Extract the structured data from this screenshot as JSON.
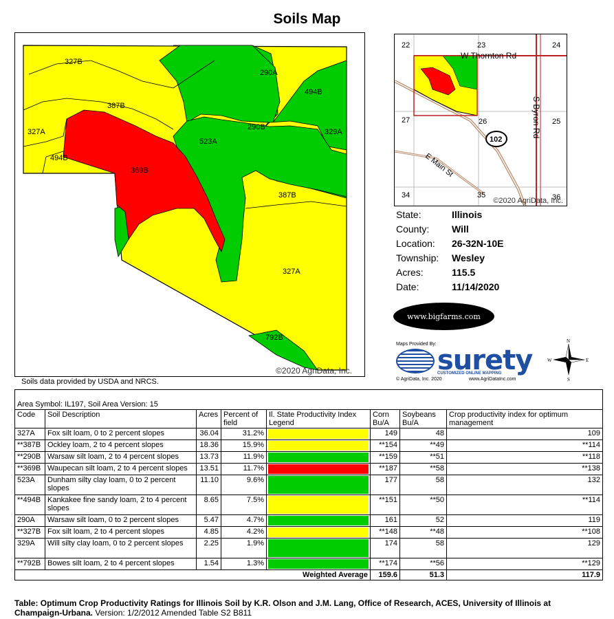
{
  "title": "Soils Map",
  "map": {
    "copyright": "©2020 AgriData, Inc.",
    "colors": {
      "yellow": "#ffff00",
      "green": "#00cc00",
      "red": "#ff0000"
    },
    "labels": [
      "327B",
      "290A",
      "494B",
      "387B",
      "327A",
      "290B",
      "329A",
      "523A",
      "494B",
      "369B",
      "387B",
      "327A",
      "792B"
    ]
  },
  "source_note": "Soils data provided by USDA and NRCS.",
  "locator": {
    "sections": [
      "22",
      "23",
      "24",
      "27",
      "26",
      "25",
      "34",
      "35",
      "36"
    ],
    "roads": [
      "W Thornton Rd",
      "S Byron Rd",
      "E Main St"
    ],
    "route_shield": "102",
    "copyright": "©2020 AgriData, Inc."
  },
  "info": [
    {
      "label": "State:",
      "value": "Illinois"
    },
    {
      "label": "County:",
      "value": "Will"
    },
    {
      "label": "Location:",
      "value": "26-32N-10E"
    },
    {
      "label": "Township:",
      "value": "Wesley"
    },
    {
      "label": "Acres:",
      "value": "115.5"
    },
    {
      "label": "Date:",
      "value": "11/14/2020"
    }
  ],
  "bigfarms": "www.bigfarms.com",
  "surety": {
    "provided": "Maps Provided By:",
    "name": "surety",
    "tagline": "CUSTOMIZED ONLINE MAPPING",
    "footer_left": "© AgriData, Inc. 2020",
    "footer_right": "www.AgriDataInc.com"
  },
  "compass": {
    "n": "N",
    "s": "S",
    "e": "E",
    "w": "W"
  },
  "table": {
    "area_symbol": "Area Symbol: IL197, Soil Area Version: 15",
    "headers": {
      "code": "Code",
      "desc": "Soil Description",
      "acres": "Acres",
      "pct": "Percent of field",
      "legend": "Il. State Productivity Index Legend",
      "corn": "Corn Bu/A",
      "soy": "Soybeans Bu/A",
      "cpi": "Crop productivity index for optimum management"
    },
    "rows": [
      {
        "code": "327A",
        "desc": "Fox silt loam, 0 to 2 percent slopes",
        "acres": "36.04",
        "pct": "31.2%",
        "color": "#ffff00",
        "corn": "149",
        "soy": "48",
        "cpi": "109"
      },
      {
        "code": "**387B",
        "desc": "Ockley loam, 2 to 4 percent slopes",
        "acres": "18.36",
        "pct": "15.9%",
        "color": "#ffff00",
        "corn": "**154",
        "soy": "**49",
        "cpi": "**114"
      },
      {
        "code": "**290B",
        "desc": "Warsaw silt loam, 2 to 4 percent slopes",
        "acres": "13.73",
        "pct": "11.9%",
        "color": "#00cc00",
        "corn": "**159",
        "soy": "**51",
        "cpi": "**118"
      },
      {
        "code": "**369B",
        "desc": "Waupecan silt loam, 2 to 4 percent slopes",
        "acres": "13.51",
        "pct": "11.7%",
        "color": "#ff0000",
        "corn": "**187",
        "soy": "**58",
        "cpi": "**138"
      },
      {
        "code": "523A",
        "desc": "Dunham silty clay loam, 0 to 2 percent slopes",
        "acres": "11.10",
        "pct": "9.6%",
        "color": "#00cc00",
        "corn": "177",
        "soy": "58",
        "cpi": "132"
      },
      {
        "code": "**494B",
        "desc": "Kankakee fine sandy loam, 2 to 4 percent slopes",
        "acres": "8.65",
        "pct": "7.5%",
        "color": "#ffff00",
        "corn": "**151",
        "soy": "**50",
        "cpi": "**114"
      },
      {
        "code": "290A",
        "desc": "Warsaw silt loam, 0 to 2 percent slopes",
        "acres": "5.47",
        "pct": "4.7%",
        "color": "#00cc00",
        "corn": "161",
        "soy": "52",
        "cpi": "119"
      },
      {
        "code": "**327B",
        "desc": "Fox silt loam, 2 to 4 percent slopes",
        "acres": "4.85",
        "pct": "4.2%",
        "color": "#ffff00",
        "corn": "**148",
        "soy": "**48",
        "cpi": "**108"
      },
      {
        "code": "329A",
        "desc": "Will silty clay loam, 0 to 2 percent slopes",
        "acres": "2.25",
        "pct": "1.9%",
        "color": "#00cc00",
        "corn": "174",
        "soy": "58",
        "cpi": "129"
      },
      {
        "code": "**792B",
        "desc": "Bowes silt loam, 2 to 4 percent slopes",
        "acres": "1.54",
        "pct": "1.3%",
        "color": "#00cc00",
        "corn": "**174",
        "soy": "**56",
        "cpi": "**129"
      }
    ],
    "weighted": {
      "label": "Weighted Average",
      "corn": "159.6",
      "soy": "51.3",
      "cpi": "117.9"
    }
  },
  "footnote": {
    "bold": "Table: Optimum Crop Productivity Ratings for Illinois Soil by K.R. Olson and J.M. Lang, Office of Research, ACES, University of Illinois at Champaign-Urbana.",
    "rest": " Version: 1/2/2012 Amended Table S2 B811"
  }
}
